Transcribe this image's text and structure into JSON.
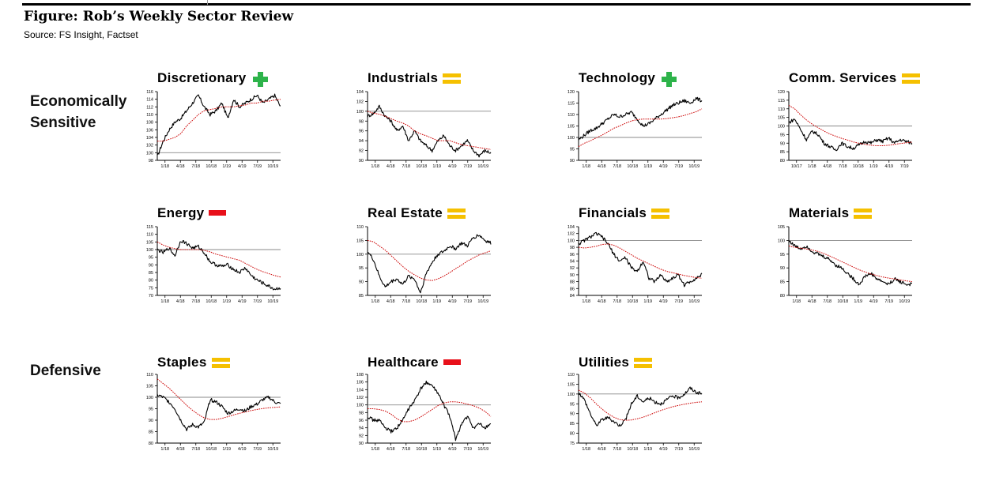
{
  "figure": {
    "title": "Figure: Rob’s Weekly Sector Review",
    "source": "Source: FS Insight, Factset"
  },
  "groups": {
    "economically_sensitive": "Economically Sensitive",
    "defensive": "Defensive"
  },
  "colors": {
    "price_line": "#000000",
    "moving_average": "#cc0000",
    "baseline": "#888888",
    "signal_plus": "#2db34a",
    "signal_equal": "#f5c000",
    "signal_minus": "#e8101a"
  },
  "chart_data": [
    {
      "type": "line",
      "title": "Discretionary",
      "signal": "plus",
      "ylim": [
        98,
        116
      ],
      "y_ticks": [
        98,
        100,
        102,
        104,
        106,
        108,
        110,
        112,
        114,
        116
      ],
      "reference_line": 100,
      "x_tick_labels": [
        "1/18",
        "4/18",
        "7/18",
        "10/18",
        "1/19",
        "4/19",
        "7/19",
        "10/19"
      ],
      "series": [
        {
          "style": "price",
          "values": [
            99,
            103,
            106,
            108,
            109,
            111,
            113,
            115,
            112,
            110,
            111,
            113,
            109,
            114,
            112,
            113,
            114,
            115,
            113,
            114,
            115,
            112
          ]
        },
        {
          "style": "moving_average",
          "values": [
            103,
            103,
            103.5,
            104,
            105,
            107,
            108.5,
            110,
            111,
            111.3,
            111.6,
            112,
            112,
            112,
            112.3,
            112.5,
            113,
            113,
            113.5,
            113.5,
            113.8,
            114
          ]
        }
      ]
    },
    {
      "type": "line",
      "title": "Industrials",
      "signal": "equal",
      "ylim": [
        90,
        104
      ],
      "y_ticks": [
        90,
        92,
        94,
        96,
        98,
        100,
        102,
        104
      ],
      "reference_line": 100,
      "x_tick_labels": [
        "1/18",
        "4/18",
        "7/18",
        "10/18",
        "1/19",
        "4/19",
        "7/19",
        "10/19"
      ],
      "series": [
        {
          "style": "price",
          "values": [
            99,
            99.5,
            101,
            99,
            98,
            96,
            97,
            94,
            96,
            94,
            93,
            92,
            94,
            95,
            93,
            92,
            93,
            94,
            92,
            91,
            92,
            91.5
          ]
        },
        {
          "style": "moving_average",
          "values": [
            100,
            99.6,
            99.4,
            99,
            98.5,
            98,
            97.6,
            97,
            96,
            95.4,
            95,
            94.5,
            94,
            94,
            94,
            93.6,
            93.2,
            93,
            92.8,
            92.6,
            92.4,
            92.2
          ]
        }
      ]
    },
    {
      "type": "line",
      "title": "Technology",
      "signal": "plus",
      "ylim": [
        90,
        120
      ],
      "y_ticks": [
        90,
        95,
        100,
        105,
        110,
        115,
        120
      ],
      "reference_line": 100,
      "x_tick_labels": [
        "1/18",
        "4/18",
        "7/18",
        "10/18",
        "1/19",
        "4/19",
        "7/19",
        "10/19"
      ],
      "series": [
        {
          "style": "price",
          "values": [
            99,
            101,
            103,
            104,
            106,
            108,
            110,
            109,
            110,
            111,
            108,
            105,
            106,
            108,
            110,
            112,
            114,
            115,
            116,
            115,
            117,
            116
          ]
        },
        {
          "style": "moving_average",
          "values": [
            96,
            97.5,
            98.5,
            99.8,
            101,
            102.5,
            104,
            105,
            106.2,
            107.2,
            107.8,
            108,
            108,
            108,
            108,
            108.2,
            108.6,
            109,
            109.6,
            110.4,
            111.2,
            112.5
          ]
        }
      ]
    },
    {
      "type": "line",
      "title": "Comm. Services",
      "signal": "equal",
      "ylim": [
        80,
        120
      ],
      "y_ticks": [
        80,
        85,
        90,
        95,
        100,
        105,
        110,
        115,
        120
      ],
      "reference_line": 100,
      "x_tick_labels": [
        "10/17",
        "1/18",
        "4/18",
        "7/18",
        "10/18",
        "1/19",
        "4/19",
        "7/19"
      ],
      "series": [
        {
          "style": "price",
          "values": [
            102,
            104,
            98,
            92,
            97,
            95,
            90,
            88,
            86,
            90,
            88,
            87,
            89,
            91,
            90,
            92,
            91,
            93,
            90,
            92,
            91,
            90
          ]
        },
        {
          "style": "moving_average",
          "values": [
            112,
            110,
            106.5,
            103.5,
            101,
            99,
            97,
            95.3,
            94,
            92.8,
            91.8,
            90.7,
            89.9,
            89.3,
            88.8,
            88.5,
            88.5,
            88.8,
            89.3,
            89.8,
            90.2,
            90.6
          ]
        }
      ]
    },
    {
      "type": "line",
      "title": "Energy",
      "signal": "minus",
      "ylim": [
        70,
        115
      ],
      "y_ticks": [
        70,
        75,
        80,
        85,
        90,
        95,
        100,
        105,
        110,
        115
      ],
      "reference_line": 100,
      "x_tick_labels": [
        "1/18",
        "4/18",
        "7/18",
        "10/18",
        "1/19",
        "4/19",
        "7/19",
        "10/19"
      ],
      "series": [
        {
          "style": "price",
          "values": [
            100,
            98,
            101,
            96,
            106,
            104,
            101,
            102,
            98,
            92,
            90,
            89,
            90,
            87,
            85,
            88,
            83,
            80,
            78,
            76,
            74,
            75
          ]
        },
        {
          "style": "moving_average",
          "values": [
            105,
            103,
            101.5,
            100.6,
            100,
            100,
            100,
            100,
            99.5,
            98.5,
            97,
            96,
            95,
            94,
            93,
            91,
            89,
            87,
            85.5,
            84.2,
            83,
            82
          ]
        }
      ]
    },
    {
      "type": "line",
      "title": "Real Estate",
      "signal": "equal",
      "ylim": [
        85,
        110
      ],
      "y_ticks": [
        85,
        90,
        95,
        100,
        105,
        110
      ],
      "reference_line": 100,
      "x_tick_labels": [
        "1/18",
        "4/18",
        "7/18",
        "10/18",
        "1/19",
        "4/19",
        "7/19",
        "10/19"
      ],
      "series": [
        {
          "style": "price",
          "values": [
            101,
            98,
            92,
            88,
            90,
            91,
            89,
            92,
            91,
            86,
            93,
            97,
            100,
            101,
            103,
            102,
            104,
            103,
            106,
            107,
            105,
            104
          ]
        },
        {
          "style": "moving_average",
          "values": [
            105,
            104.5,
            103,
            101.5,
            99.5,
            97.5,
            95.5,
            93.8,
            92.5,
            91.3,
            90.6,
            90.4,
            91,
            92,
            93.3,
            94.7,
            96,
            97.5,
            98.6,
            99.7,
            100.5,
            101.2
          ]
        }
      ]
    },
    {
      "type": "line",
      "title": "Financials",
      "signal": "equal",
      "ylim": [
        84,
        104
      ],
      "y_ticks": [
        84,
        86,
        88,
        90,
        92,
        94,
        96,
        98,
        100,
        102,
        104
      ],
      "reference_line": 100,
      "x_tick_labels": [
        "1/18",
        "4/18",
        "7/18",
        "10/18",
        "1/19",
        "4/19",
        "7/19",
        "10/19"
      ],
      "series": [
        {
          "style": "price",
          "values": [
            99,
            100,
            101,
            102,
            101,
            99,
            96,
            94,
            95,
            92,
            91,
            94,
            89,
            88,
            90,
            88,
            89,
            90,
            87,
            88,
            89,
            90
          ]
        },
        {
          "style": "moving_average",
          "values": [
            98,
            97.8,
            98,
            98.3,
            98.8,
            99,
            98.6,
            97.8,
            96.8,
            95.8,
            94.8,
            94,
            93.2,
            92.4,
            91.6,
            91,
            90.6,
            90.2,
            89.8,
            89.5,
            89.2,
            89
          ]
        }
      ]
    },
    {
      "type": "line",
      "title": "Materials",
      "signal": "equal",
      "ylim": [
        80,
        105
      ],
      "y_ticks": [
        80,
        85,
        90,
        95,
        100,
        105
      ],
      "reference_line": 100,
      "x_tick_labels": [
        "1/18",
        "4/18",
        "7/18",
        "10/18",
        "1/19",
        "4/19",
        "7/19",
        "10/19"
      ],
      "series": [
        {
          "style": "price",
          "values": [
            100,
            98,
            97,
            98,
            96,
            95,
            94,
            93,
            91,
            90,
            88,
            86,
            84,
            87,
            88,
            86,
            85,
            84,
            86,
            85,
            84,
            84
          ]
        },
        {
          "style": "moving_average",
          "values": [
            98,
            97.5,
            97.2,
            96.9,
            96.5,
            96,
            95.2,
            94.3,
            93.3,
            92.3,
            91.3,
            90.3,
            89.3,
            88.5,
            87.8,
            87.2,
            86.7,
            86.3,
            86,
            85.6,
            85.3,
            85
          ]
        }
      ]
    },
    {
      "type": "line",
      "title": "Staples",
      "signal": "equal",
      "ylim": [
        80,
        110
      ],
      "y_ticks": [
        80,
        85,
        90,
        95,
        100,
        105,
        110
      ],
      "reference_line": 100,
      "x_tick_labels": [
        "1/18",
        "4/18",
        "7/18",
        "10/18",
        "1/19",
        "4/19",
        "7/19",
        "10/19"
      ],
      "series": [
        {
          "style": "price",
          "values": [
            101,
            100,
            98,
            95,
            90,
            86,
            88,
            87,
            89,
            99,
            98,
            96,
            93,
            94,
            95,
            94,
            96,
            97,
            99,
            100,
            98,
            97
          ]
        },
        {
          "style": "moving_average",
          "values": [
            108,
            106,
            104,
            101.5,
            99,
            96.5,
            94.3,
            92.5,
            91,
            90.3,
            90.3,
            90.8,
            91.5,
            92.3,
            93,
            93.6,
            94.2,
            94.7,
            95.1,
            95.4,
            95.6,
            95.8
          ]
        }
      ]
    },
    {
      "type": "line",
      "title": "Healthcare",
      "signal": "minus",
      "ylim": [
        90,
        108
      ],
      "y_ticks": [
        90,
        92,
        94,
        96,
        98,
        100,
        102,
        104,
        106,
        108
      ],
      "reference_line": 100,
      "x_tick_labels": [
        "1/18",
        "4/18",
        "7/18",
        "10/18",
        "1/19",
        "4/19",
        "7/19",
        "10/19"
      ],
      "series": [
        {
          "style": "price",
          "values": [
            97,
            96,
            96,
            94,
            93,
            94,
            96,
            99,
            101,
            104,
            106,
            105,
            103,
            100,
            97,
            91,
            95,
            97,
            94,
            95,
            94,
            95
          ]
        },
        {
          "style": "moving_average",
          "values": [
            99,
            99,
            98.8,
            98.4,
            97.6,
            96.4,
            95.6,
            95.6,
            96,
            96.8,
            97.8,
            98.8,
            99.8,
            100.5,
            100.8,
            100.8,
            100.6,
            100.2,
            99.8,
            99.2,
            98.3,
            97
          ]
        }
      ]
    },
    {
      "type": "line",
      "title": "Utilities",
      "signal": "equal",
      "ylim": [
        75,
        110
      ],
      "y_ticks": [
        75,
        80,
        85,
        90,
        95,
        100,
        105,
        110
      ],
      "reference_line": 100,
      "x_tick_labels": [
        "1/18",
        "4/18",
        "7/18",
        "10/18",
        "1/19",
        "4/19",
        "7/19",
        "10/19"
      ],
      "series": [
        {
          "style": "price",
          "values": [
            101,
            97,
            90,
            84,
            87,
            88,
            86,
            84,
            87,
            95,
            99,
            96,
            98,
            96,
            95,
            97,
            99,
            98,
            100,
            103,
            101,
            100
          ]
        },
        {
          "style": "moving_average",
          "values": [
            102,
            100.5,
            98,
            95,
            92.3,
            90,
            88.2,
            87,
            86.6,
            86.8,
            87.4,
            88.2,
            89.3,
            90.5,
            91.6,
            92.6,
            93.5,
            94.2,
            94.8,
            95.3,
            95.7,
            96
          ]
        }
      ]
    }
  ]
}
